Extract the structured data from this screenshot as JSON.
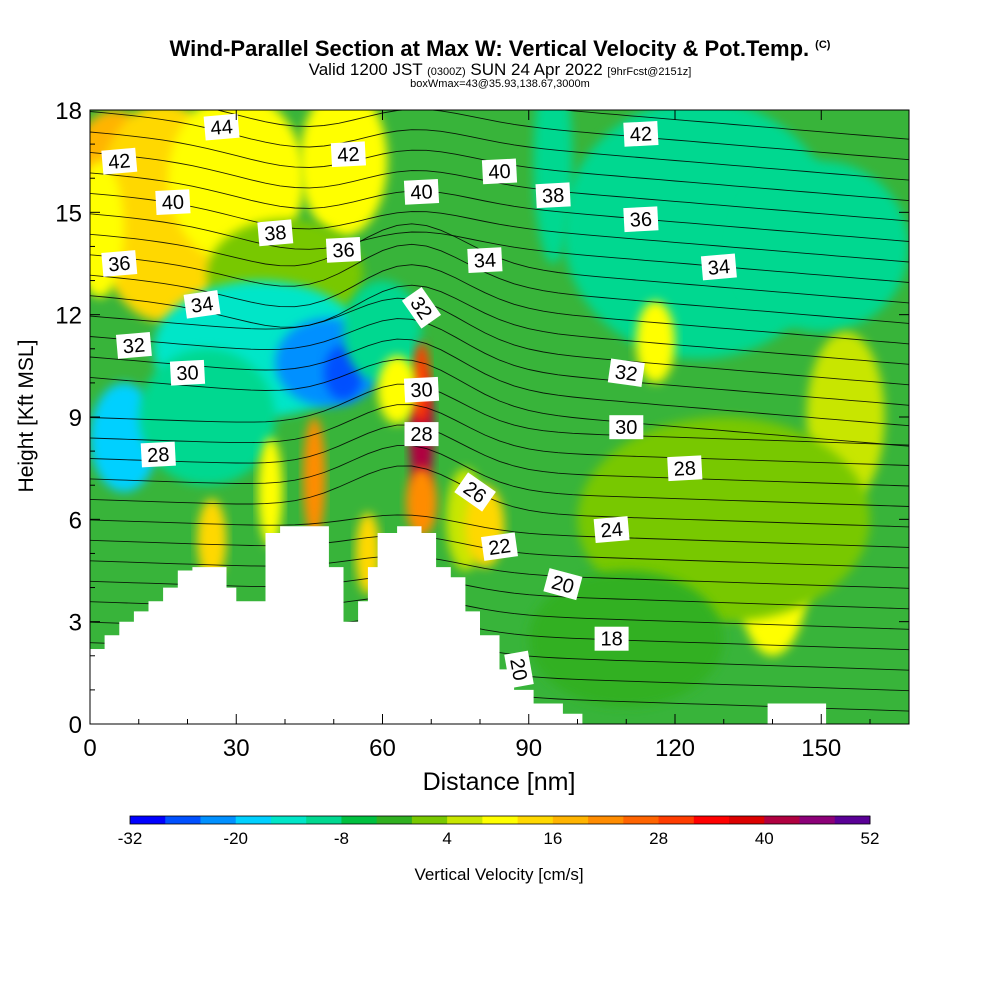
{
  "title": {
    "main": "Wind-Parallel Section at Max W: Vertical Velocity & Pot.Temp.",
    "copyright": "(C)",
    "valid_a": "Valid 1200 JST",
    "valid_utc": "(0300Z)",
    "valid_b": "SUN 24 Apr 2022",
    "forecast": "[9hrFcst@2151z]",
    "box": "boxWmax=43@35.93,138.67,3000m"
  },
  "chart_data": {
    "type": "heatmap",
    "xlabel": "Distance [nm]",
    "ylabel": "Height [Kft MSL]",
    "xlim": [
      0,
      168
    ],
    "ylim": [
      0,
      18
    ],
    "xticks": [
      0,
      30,
      60,
      90,
      120,
      150
    ],
    "yticks": [
      0,
      3,
      6,
      9,
      12,
      15,
      18
    ],
    "colorbar": {
      "label": "Vertical Velocity [cm/s]",
      "ticks": [
        -32,
        -20,
        -8,
        4,
        16,
        28,
        40,
        52
      ],
      "colors": [
        "#0000ff",
        "#0050ff",
        "#0090ff",
        "#00d0ff",
        "#00e6c8",
        "#00d890",
        "#00c040",
        "#30b020",
        "#78c800",
        "#c8e600",
        "#ffff00",
        "#ffd800",
        "#ffb400",
        "#ff8c00",
        "#ff6400",
        "#ff3c00",
        "#ff0000",
        "#dc0000",
        "#b00040",
        "#8c0078",
        "#5a0096"
      ]
    },
    "terrain": [
      [
        0,
        2.2
      ],
      [
        3,
        2.2
      ],
      [
        3,
        2.6
      ],
      [
        6,
        2.6
      ],
      [
        6,
        3
      ],
      [
        9,
        3
      ],
      [
        9,
        3.3
      ],
      [
        12,
        3.3
      ],
      [
        12,
        3.6
      ],
      [
        15,
        3.6
      ],
      [
        15,
        4
      ],
      [
        18,
        4
      ],
      [
        18,
        4.5
      ],
      [
        21,
        4.5
      ],
      [
        21,
        4.6
      ],
      [
        28,
        4.6
      ],
      [
        28,
        4
      ],
      [
        30,
        4
      ],
      [
        30,
        3.6
      ],
      [
        36,
        3.6
      ],
      [
        36,
        5.6
      ],
      [
        39,
        5.6
      ],
      [
        39,
        5.8
      ],
      [
        49,
        5.8
      ],
      [
        49,
        4.6
      ],
      [
        52,
        4.6
      ],
      [
        52,
        3
      ],
      [
        55,
        3
      ],
      [
        55,
        3.6
      ],
      [
        57,
        3.6
      ],
      [
        57,
        4.6
      ],
      [
        59,
        4.6
      ],
      [
        59,
        5.6
      ],
      [
        63,
        5.6
      ],
      [
        63,
        5.8
      ],
      [
        68,
        5.8
      ],
      [
        68,
        5.6
      ],
      [
        71,
        5.6
      ],
      [
        71,
        4.6
      ],
      [
        74,
        4.6
      ],
      [
        74,
        4.3
      ],
      [
        77,
        4.3
      ],
      [
        77,
        3.3
      ],
      [
        80,
        3.3
      ],
      [
        80,
        2.6
      ],
      [
        84,
        2.6
      ],
      [
        84,
        1.6
      ],
      [
        87,
        1.6
      ],
      [
        87,
        1
      ],
      [
        91,
        1
      ],
      [
        91,
        0.6
      ],
      [
        97,
        0.6
      ],
      [
        97,
        0.3
      ],
      [
        101,
        0.3
      ],
      [
        101,
        0
      ],
      [
        139,
        0
      ],
      [
        139,
        0.6
      ],
      [
        151,
        0.6
      ],
      [
        151,
        0
      ],
      [
        168,
        0
      ]
    ],
    "blobs": [
      {
        "x": 5,
        "y": 15.5,
        "rx": 10,
        "ry": 2.5,
        "w": 16
      },
      {
        "x": 15,
        "y": 15,
        "rx": 14,
        "ry": 3.2,
        "w": 12
      },
      {
        "x": 30,
        "y": 16,
        "rx": 14,
        "ry": 2.5,
        "w": 10
      },
      {
        "x": 52,
        "y": 16.5,
        "rx": 9,
        "ry": 2.2,
        "w": 8
      },
      {
        "x": 2,
        "y": 14.5,
        "rx": 5,
        "ry": 2,
        "w": 10
      },
      {
        "x": 40,
        "y": 13.2,
        "rx": 16,
        "ry": 1.6,
        "w": 3
      },
      {
        "x": 125,
        "y": 14.5,
        "rx": 28,
        "ry": 3.8,
        "w": -9
      },
      {
        "x": 150,
        "y": 14,
        "rx": 18,
        "ry": 2.5,
        "w": -12
      },
      {
        "x": 95,
        "y": 16.5,
        "rx": 4,
        "ry": 3,
        "w": -12
      },
      {
        "x": 35,
        "y": 11,
        "rx": 22,
        "ry": 2,
        "w": -16
      },
      {
        "x": 49,
        "y": 10.6,
        "rx": 11,
        "ry": 1.3,
        "w": -22
      },
      {
        "x": 52,
        "y": 10.3,
        "rx": 4,
        "ry": 0.8,
        "w": -26
      },
      {
        "x": 7,
        "y": 8.4,
        "rx": 7,
        "ry": 1.6,
        "w": -18
      },
      {
        "x": 24,
        "y": 9,
        "rx": 14,
        "ry": 2,
        "w": -12
      },
      {
        "x": 60,
        "y": 11.5,
        "rx": 8,
        "ry": 1.5,
        "w": -10
      },
      {
        "x": 46,
        "y": 7.2,
        "rx": 2.3,
        "ry": 1.8,
        "w": 22
      },
      {
        "x": 37,
        "y": 6.8,
        "rx": 2.5,
        "ry": 1.6,
        "w": 10
      },
      {
        "x": 25,
        "y": 5.4,
        "rx": 3,
        "ry": 1.2,
        "w": 12
      },
      {
        "x": 57,
        "y": 5,
        "rx": 2.5,
        "ry": 1.2,
        "w": 14
      },
      {
        "x": 68,
        "y": 8.5,
        "rx": 2.5,
        "ry": 1.8,
        "w": 40
      },
      {
        "x": 68,
        "y": 10,
        "rx": 1.8,
        "ry": 1.2,
        "w": 30
      },
      {
        "x": 68,
        "y": 6.5,
        "rx": 3.2,
        "ry": 1,
        "w": 20
      },
      {
        "x": 63,
        "y": 9.8,
        "rx": 4,
        "ry": 1,
        "w": 10
      },
      {
        "x": 77,
        "y": 6,
        "rx": 4,
        "ry": 1.5,
        "w": 5
      },
      {
        "x": 81,
        "y": 5.8,
        "rx": 4,
        "ry": 1.2,
        "w": 12
      },
      {
        "x": 116,
        "y": 11.2,
        "rx": 4,
        "ry": 1.2,
        "w": 10
      },
      {
        "x": 140,
        "y": 5,
        "rx": 8,
        "ry": 3,
        "w": 8
      },
      {
        "x": 155,
        "y": 9,
        "rx": 8,
        "ry": 2.5,
        "w": 6
      },
      {
        "x": 130,
        "y": 6,
        "rx": 30,
        "ry": 3,
        "w": 2
      },
      {
        "x": 110,
        "y": 2.5,
        "rx": 20,
        "ry": 2,
        "w": -2
      }
    ],
    "contour_labels": [
      {
        "v": "44",
        "x": 27,
        "y": 17.5,
        "r": -5
      },
      {
        "v": "42",
        "x": 6,
        "y": 16.5,
        "r": -5
      },
      {
        "v": "42",
        "x": 53,
        "y": 16.7,
        "r": -3
      },
      {
        "v": "42",
        "x": 113,
        "y": 17.3,
        "r": -3
      },
      {
        "v": "40",
        "x": 17,
        "y": 15.3,
        "r": -3
      },
      {
        "v": "40",
        "x": 68,
        "y": 15.6,
        "r": -3
      },
      {
        "v": "40",
        "x": 84,
        "y": 16.2,
        "r": -3
      },
      {
        "v": "38",
        "x": 38,
        "y": 14.4,
        "r": -5
      },
      {
        "v": "38",
        "x": 95,
        "y": 15.5,
        "r": -3
      },
      {
        "v": "36",
        "x": 6,
        "y": 13.5,
        "r": -5
      },
      {
        "v": "36",
        "x": 52,
        "y": 13.9,
        "r": -3
      },
      {
        "v": "36",
        "x": 113,
        "y": 14.8,
        "r": -3
      },
      {
        "v": "34",
        "x": 23,
        "y": 12.3,
        "r": -8
      },
      {
        "v": "34",
        "x": 81,
        "y": 13.6,
        "r": -3
      },
      {
        "v": "34",
        "x": 129,
        "y": 13.4,
        "r": -5
      },
      {
        "v": "32",
        "x": 9,
        "y": 11.1,
        "r": -5
      },
      {
        "v": "32",
        "x": 68,
        "y": 12.2,
        "r": 55
      },
      {
        "v": "32",
        "x": 110,
        "y": 10.3,
        "r": 8
      },
      {
        "v": "30",
        "x": 20,
        "y": 10.3,
        "r": -3
      },
      {
        "v": "30",
        "x": 68,
        "y": 9.8,
        "r": -3
      },
      {
        "v": "30",
        "x": 110,
        "y": 8.7,
        "r": 0
      },
      {
        "v": "28",
        "x": 14,
        "y": 7.9,
        "r": -3
      },
      {
        "v": "28",
        "x": 68,
        "y": 8.5,
        "r": 0
      },
      {
        "v": "28",
        "x": 122,
        "y": 7.5,
        "r": -3
      },
      {
        "v": "26",
        "x": 79,
        "y": 6.8,
        "r": 35
      },
      {
        "v": "24",
        "x": 107,
        "y": 5.7,
        "r": -5
      },
      {
        "v": "22",
        "x": 84,
        "y": 5.2,
        "r": -8
      },
      {
        "v": "20",
        "x": 97,
        "y": 4.1,
        "r": 15
      },
      {
        "v": "20",
        "x": 88,
        "y": 1.6,
        "r": 80
      },
      {
        "v": "18",
        "x": 107,
        "y": 2.5,
        "r": 0
      }
    ]
  }
}
